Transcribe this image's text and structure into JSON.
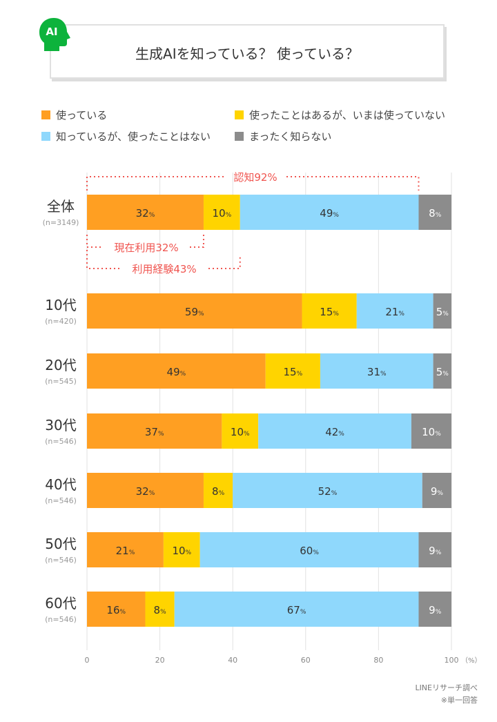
{
  "title": "生成AIを知っている？ 使っている？",
  "icon_badge": "AI",
  "colors": {
    "used": "#FF9F22",
    "used_before": "#FFD400",
    "aware": "#8FD8FC",
    "unaware": "#8C8C8C",
    "annotation": "#F0544F",
    "icon": "#0DB33C"
  },
  "legend": [
    "使っている",
    "使ったことはあるが、いまは使っていない",
    "知っているが、使ったことはない",
    "まったく知らない"
  ],
  "annotations": {
    "awareness": "認知92%",
    "current_use": "現在利用32%",
    "use_experience": "利用経験43%"
  },
  "source": "LINEリサーチ調べ",
  "note": "※単一回答",
  "chart_data": {
    "type": "bar",
    "orientation": "horizontal-stacked-100",
    "categories": [
      "全体",
      "10代",
      "20代",
      "30代",
      "40代",
      "50代",
      "60代"
    ],
    "sample_sizes": [
      "(n=3149)",
      "(n=420)",
      "(n=545)",
      "(n=546)",
      "(n=546)",
      "(n=546)",
      "(n=546)"
    ],
    "series": [
      {
        "name": "使っている",
        "values": [
          32,
          59,
          49,
          37,
          32,
          21,
          16
        ]
      },
      {
        "name": "使ったことはあるが、いまは使っていない",
        "values": [
          10,
          15,
          15,
          10,
          8,
          10,
          8
        ]
      },
      {
        "name": "知っているが、使ったことはない",
        "values": [
          49,
          21,
          31,
          42,
          52,
          60,
          67
        ]
      },
      {
        "name": "まったく知らない",
        "values": [
          8,
          5,
          5,
          10,
          9,
          9,
          9
        ]
      }
    ],
    "xlim": [
      0,
      100
    ],
    "xticks": [
      0,
      20,
      40,
      60,
      80,
      100
    ],
    "xunit": "（%）",
    "value_suffix": "%",
    "grid": true,
    "legend_position": "top"
  }
}
